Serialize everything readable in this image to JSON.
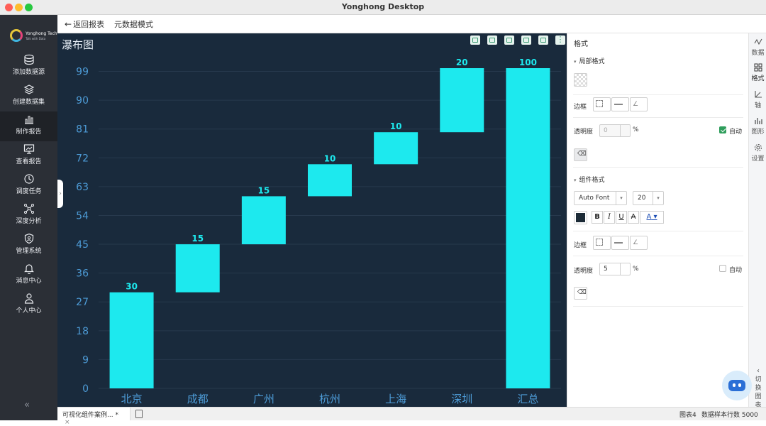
{
  "window": {
    "title": "Yonghong Desktop"
  },
  "logo": {
    "name": "Yonghong Tech",
    "tagline": "Talk with Data"
  },
  "sidebar": {
    "items": [
      {
        "label": "添加数据源",
        "icon": "database-icon"
      },
      {
        "label": "创建数据集",
        "icon": "layers-icon"
      },
      {
        "label": "制作报告",
        "icon": "bar-chart-icon",
        "active": true
      },
      {
        "label": "查看报告",
        "icon": "monitor-chart-icon"
      },
      {
        "label": "调度任务",
        "icon": "clock-icon"
      },
      {
        "label": "深度分析",
        "icon": "network-icon"
      },
      {
        "label": "管理系统",
        "icon": "shield-icon"
      },
      {
        "label": "消息中心",
        "icon": "bell-icon"
      },
      {
        "label": "个人中心",
        "icon": "user-icon"
      }
    ],
    "collapse": "«"
  },
  "topbar": {
    "back_label": "返回报表",
    "meta_label": "元数据模式"
  },
  "canvas": {
    "title": "瀑布图"
  },
  "chart_data": {
    "type": "bar",
    "subtype": "waterfall",
    "title": "瀑布图",
    "categories": [
      "北京",
      "成都",
      "广州",
      "杭州",
      "上海",
      "深圳",
      "汇总"
    ],
    "values": [
      30,
      15,
      15,
      10,
      10,
      20,
      100
    ],
    "bar_bases": [
      0,
      30,
      45,
      60,
      70,
      80,
      0
    ],
    "data_labels": [
      "30",
      "15",
      "15",
      "10",
      "10",
      "20",
      "100"
    ],
    "yticks": [
      "0",
      "9",
      "18",
      "27",
      "36",
      "45",
      "54",
      "63",
      "72",
      "81",
      "90",
      "99"
    ],
    "ylim": [
      0,
      100
    ],
    "grid": true,
    "bar_color": "#1de9ee",
    "background": "#192a3c",
    "legend": "none"
  },
  "panel": {
    "title": "格式",
    "local_section": "局部格式",
    "component_section": "组件格式",
    "border_label": "边框",
    "opacity_label": "透明度",
    "percent": "%",
    "auto_label": "自动",
    "local_opacity": "0",
    "local_auto": true,
    "font_family": "Auto Font",
    "font_size": "20",
    "bold": "B",
    "italic": "I",
    "underline": "U",
    "strike": "A",
    "font_color": "A",
    "component_opacity": "5",
    "component_auto": false
  },
  "rtabs": [
    {
      "label": "数据",
      "icon": "data-wave-icon"
    },
    {
      "label": "格式",
      "icon": "grid-format-icon",
      "active": true
    },
    {
      "label": "轴",
      "icon": "axis-icon"
    },
    {
      "label": "图形",
      "icon": "graph-icon"
    },
    {
      "label": "设置",
      "icon": "gear-icon"
    }
  ],
  "rtab_switch": "切换图表",
  "status": {
    "file_tab": "可视化组件案例...",
    "modified": "*",
    "close": "×",
    "chart_name": "图表4",
    "rows_label": "数据样本行数 5000"
  }
}
